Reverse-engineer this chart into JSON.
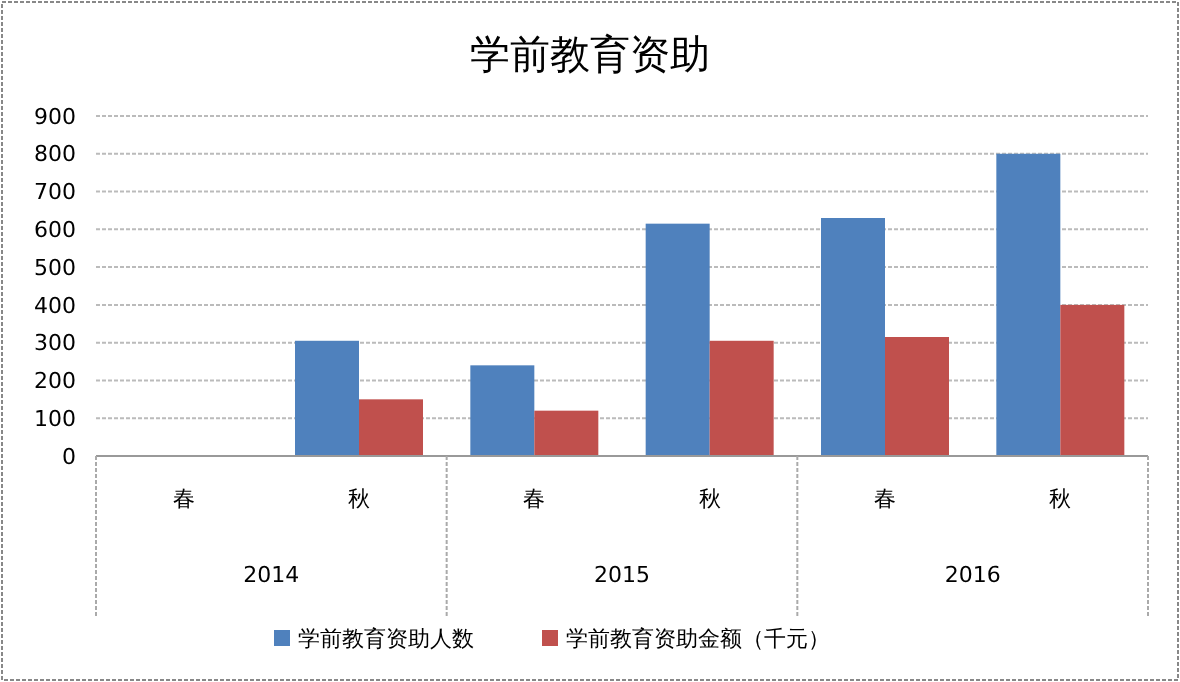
{
  "chart_data": {
    "type": "bar",
    "title": "学前教育资助",
    "categories": [
      "春",
      "秋",
      "春",
      "秋",
      "春",
      "秋"
    ],
    "annotations": [
      "2014",
      "2015",
      "2016"
    ],
    "series": [
      {
        "name": "学前教育资助人数",
        "color": "#4f81bd",
        "values": [
          null,
          305,
          240,
          615,
          630,
          800
        ]
      },
      {
        "name": "学前教育资助金额（千元）",
        "color": "#c0504d",
        "values": [
          null,
          150,
          120,
          305,
          315,
          400
        ]
      }
    ],
    "ylim": [
      0,
      900
    ],
    "yticks": [
      0,
      100,
      200,
      300,
      400,
      500,
      600,
      700,
      800,
      900
    ],
    "grid": "y",
    "legend": "bottom"
  }
}
